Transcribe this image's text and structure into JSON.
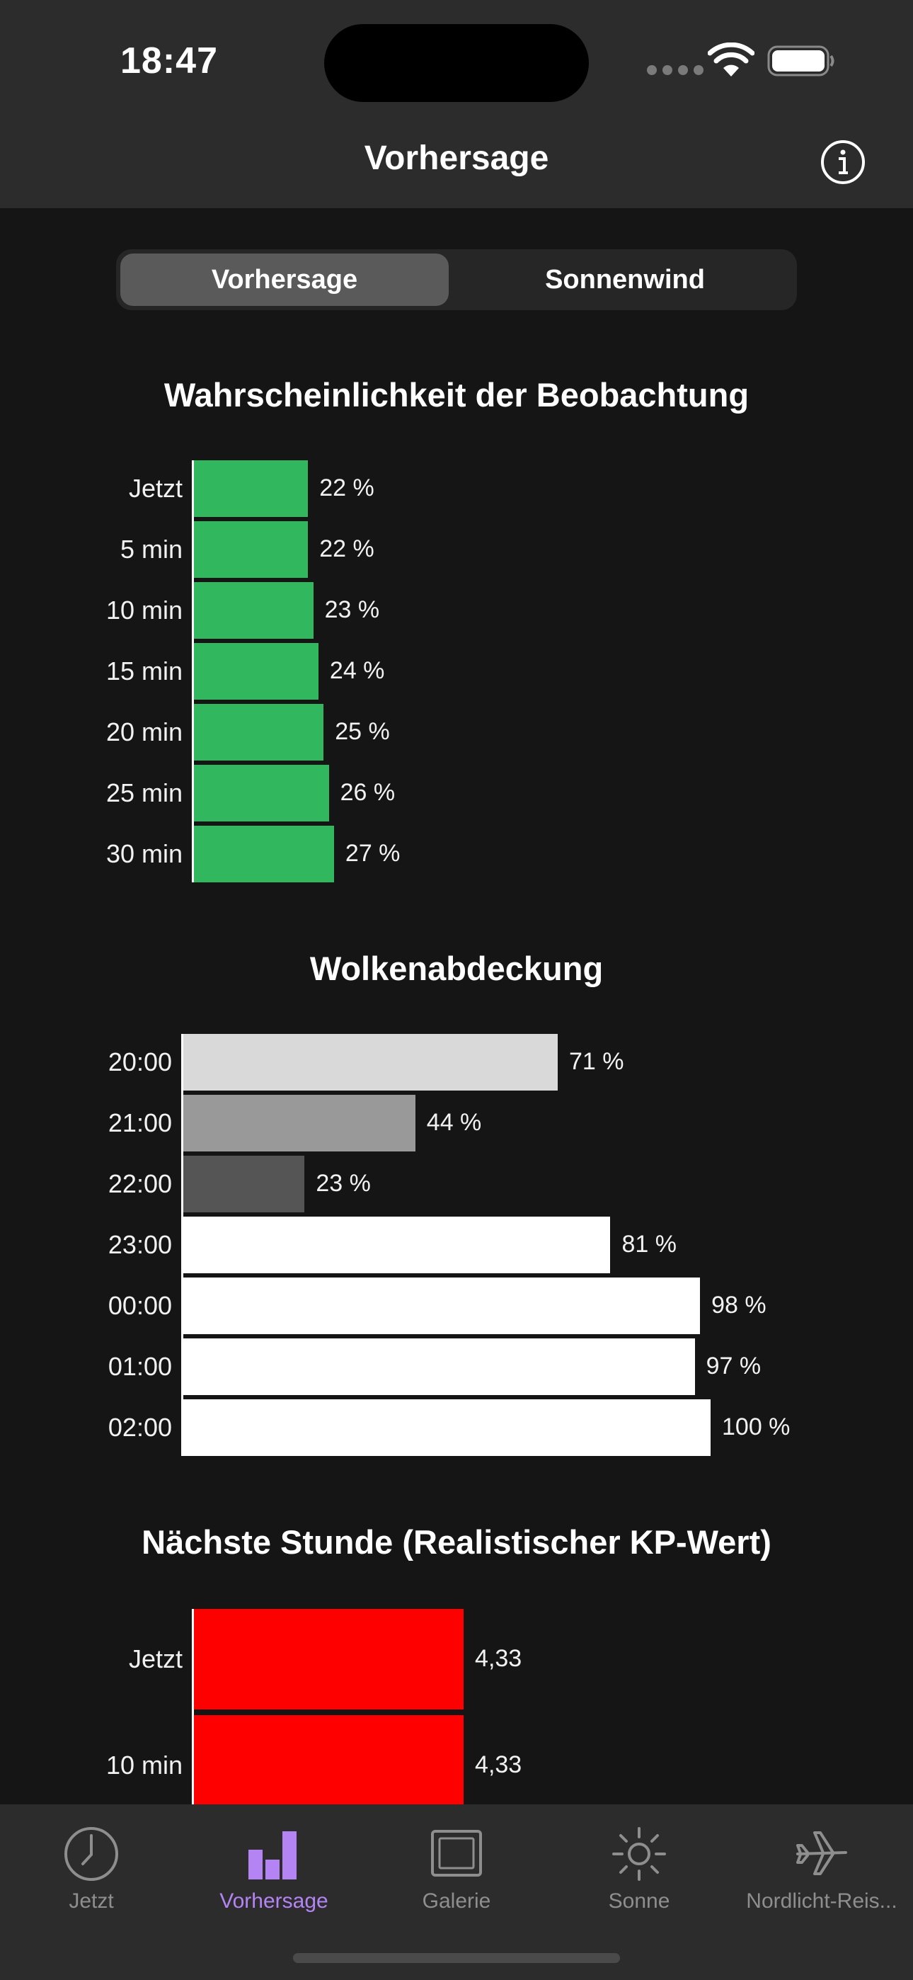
{
  "status": {
    "time": "18:47"
  },
  "nav": {
    "title": "Vorhersage"
  },
  "segmented": {
    "active": "Vorhersage",
    "other": "Sonnenwind"
  },
  "charts": {
    "probability": {
      "title": "Wahrscheinlichkeit der Beobachtung",
      "bar_color": "#31b85f",
      "rows": [
        {
          "label": "Jetzt",
          "value": 22,
          "text": "22 %"
        },
        {
          "label": "5 min",
          "value": 22,
          "text": "22 %"
        },
        {
          "label": "10 min",
          "value": 23,
          "text": "23 %"
        },
        {
          "label": "15 min",
          "value": 24,
          "text": "24 %"
        },
        {
          "label": "20 min",
          "value": 25,
          "text": "25 %"
        },
        {
          "label": "25 min",
          "value": 26,
          "text": "26 %"
        },
        {
          "label": "30 min",
          "value": 27,
          "text": "27 %"
        }
      ]
    },
    "clouds": {
      "title": "Wolkenabdeckung",
      "rows": [
        {
          "label": "20:00",
          "value": 71,
          "text": "71 %",
          "color": "#d9d9d9"
        },
        {
          "label": "21:00",
          "value": 44,
          "text": "44 %",
          "color": "#999999"
        },
        {
          "label": "22:00",
          "value": 23,
          "text": "23 %",
          "color": "#555555"
        },
        {
          "label": "23:00",
          "value": 81,
          "text": "81 %",
          "color": "#ffffff"
        },
        {
          "label": "00:00",
          "value": 98,
          "text": "98 %",
          "color": "#ffffff"
        },
        {
          "label": "01:00",
          "value": 97,
          "text": "97 %",
          "color": "#ffffff"
        },
        {
          "label": "02:00",
          "value": 100,
          "text": "100 %",
          "color": "#ffffff"
        }
      ]
    },
    "kp": {
      "title": "Nächste Stunde (Realistischer KP-Wert)",
      "bar_color": "#ff0000",
      "rows": [
        {
          "label": "Jetzt",
          "value": 4.33,
          "text": "4,33"
        },
        {
          "label": "10 min",
          "value": 4.33,
          "text": "4,33"
        }
      ]
    }
  },
  "tabs": [
    {
      "label": "Jetzt",
      "icon": "clock-icon",
      "active": false
    },
    {
      "label": "Vorhersage",
      "icon": "bar-chart-icon",
      "active": true
    },
    {
      "label": "Galerie",
      "icon": "picture-frame-icon",
      "active": false
    },
    {
      "label": "Sonne",
      "icon": "sun-icon",
      "active": false
    },
    {
      "label": "Nordlicht-Reis...",
      "icon": "airplane-icon",
      "active": false
    }
  ],
  "colors": {
    "accent": "#b484f5",
    "background": "#151515",
    "bar_background": "#2c2c2c"
  }
}
